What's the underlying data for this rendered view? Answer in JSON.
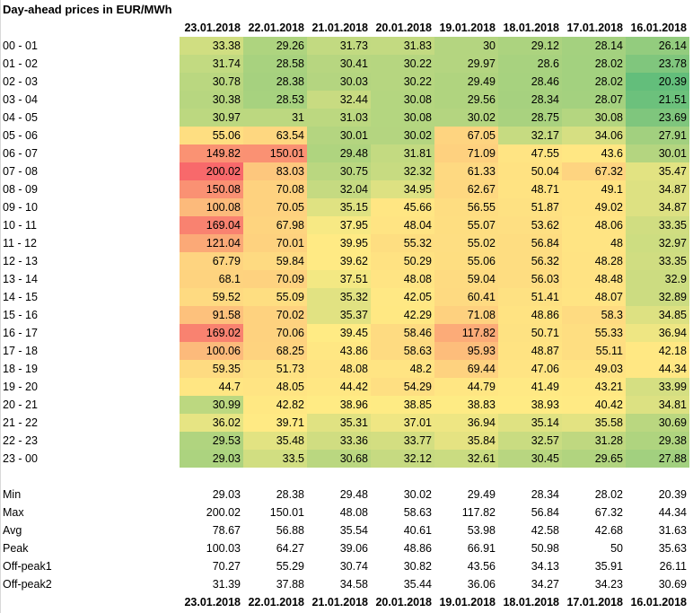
{
  "title": "Day-ahead prices in EUR/MWh",
  "dates": [
    "23.01.2018",
    "22.01.2018",
    "21.01.2018",
    "20.01.2018",
    "19.01.2018",
    "18.01.2018",
    "17.01.2018",
    "16.01.2018"
  ],
  "hours": [
    "00 - 01",
    "01 - 02",
    "02 - 03",
    "03 - 04",
    "04 - 05",
    "05 - 06",
    "06 - 07",
    "07 - 08",
    "08 - 09",
    "09 - 10",
    "10 - 11",
    "11 - 12",
    "12 - 13",
    "13 - 14",
    "14 - 15",
    "15 - 16",
    "16 - 17",
    "17 - 18",
    "18 - 19",
    "19 - 20",
    "20 - 21",
    "21 - 22",
    "22 - 23",
    "23 - 00"
  ],
  "prices": [
    [
      "33.38",
      "29.26",
      "31.73",
      "31.83",
      "30",
      "29.12",
      "28.14",
      "26.14"
    ],
    [
      "31.74",
      "28.58",
      "30.41",
      "30.22",
      "29.97",
      "28.6",
      "28.02",
      "23.78"
    ],
    [
      "30.78",
      "28.38",
      "30.03",
      "30.22",
      "29.49",
      "28.46",
      "28.02",
      "20.39"
    ],
    [
      "30.38",
      "28.53",
      "32.44",
      "30.08",
      "29.56",
      "28.34",
      "28.07",
      "21.51"
    ],
    [
      "30.97",
      "31",
      "31.03",
      "30.08",
      "30.02",
      "28.75",
      "30.08",
      "23.69"
    ],
    [
      "55.06",
      "63.54",
      "30.01",
      "30.02",
      "67.05",
      "32.17",
      "34.06",
      "27.91"
    ],
    [
      "149.82",
      "150.01",
      "29.48",
      "31.81",
      "71.09",
      "47.55",
      "43.6",
      "30.01"
    ],
    [
      "200.02",
      "83.03",
      "30.75",
      "32.32",
      "61.33",
      "50.04",
      "67.32",
      "35.47"
    ],
    [
      "150.08",
      "70.08",
      "32.04",
      "34.95",
      "62.67",
      "48.71",
      "49.1",
      "34.87"
    ],
    [
      "100.08",
      "70.05",
      "35.15",
      "45.66",
      "56.55",
      "51.87",
      "49.02",
      "34.87"
    ],
    [
      "169.04",
      "67.98",
      "37.95",
      "48.04",
      "55.07",
      "53.62",
      "48.06",
      "33.35"
    ],
    [
      "121.04",
      "70.01",
      "39.95",
      "55.32",
      "55.02",
      "56.84",
      "48",
      "32.97"
    ],
    [
      "67.79",
      "59.84",
      "39.62",
      "50.29",
      "55.06",
      "56.32",
      "48.28",
      "33.35"
    ],
    [
      "68.1",
      "70.09",
      "37.51",
      "48.08",
      "59.04",
      "56.03",
      "48.48",
      "32.9"
    ],
    [
      "59.52",
      "55.09",
      "35.32",
      "42.05",
      "60.41",
      "51.41",
      "48.07",
      "32.89"
    ],
    [
      "91.58",
      "70.02",
      "35.37",
      "42.29",
      "71.08",
      "48.86",
      "58.3",
      "34.85"
    ],
    [
      "169.02",
      "70.06",
      "39.45",
      "58.46",
      "117.82",
      "50.71",
      "55.33",
      "36.94"
    ],
    [
      "100.06",
      "68.25",
      "43.86",
      "58.63",
      "95.93",
      "48.87",
      "55.11",
      "42.18"
    ],
    [
      "59.35",
      "51.73",
      "48.08",
      "48.2",
      "69.44",
      "47.06",
      "49.03",
      "44.34"
    ],
    [
      "44.7",
      "48.05",
      "44.42",
      "54.29",
      "44.79",
      "41.49",
      "43.21",
      "33.99"
    ],
    [
      "30.99",
      "42.82",
      "38.96",
      "38.85",
      "38.83",
      "38.93",
      "40.42",
      "34.81"
    ],
    [
      "36.02",
      "39.71",
      "35.31",
      "37.01",
      "36.94",
      "35.14",
      "35.58",
      "30.69"
    ],
    [
      "29.53",
      "35.48",
      "33.36",
      "33.77",
      "35.84",
      "32.57",
      "31.28",
      "29.38"
    ],
    [
      "29.03",
      "33.5",
      "30.68",
      "32.12",
      "32.61",
      "30.45",
      "29.65",
      "27.88"
    ]
  ],
  "stats": [
    {
      "label": "Min",
      "values": [
        "29.03",
        "28.38",
        "29.48",
        "30.02",
        "29.49",
        "28.34",
        "28.02",
        "20.39"
      ]
    },
    {
      "label": "Max",
      "values": [
        "200.02",
        "150.01",
        "48.08",
        "58.63",
        "117.82",
        "56.84",
        "67.32",
        "44.34"
      ]
    },
    {
      "label": "Avg",
      "values": [
        "78.67",
        "56.88",
        "35.54",
        "40.61",
        "53.98",
        "42.58",
        "42.68",
        "31.63"
      ]
    },
    {
      "label": "Peak",
      "values": [
        "100.03",
        "64.27",
        "39.06",
        "48.86",
        "66.91",
        "50.98",
        "50",
        "35.63"
      ]
    },
    {
      "label": "Off-peak1",
      "values": [
        "70.27",
        "55.29",
        "30.74",
        "30.82",
        "43.56",
        "34.13",
        "35.91",
        "26.11"
      ]
    },
    {
      "label": "Off-peak2",
      "values": [
        "31.39",
        "37.88",
        "34.58",
        "35.44",
        "36.06",
        "34.27",
        "34.23",
        "30.69"
      ]
    }
  ],
  "colors": {
    "scale_low": "#63be7b",
    "scale_mid": "#ffeb84",
    "scale_high": "#f8696b"
  }
}
